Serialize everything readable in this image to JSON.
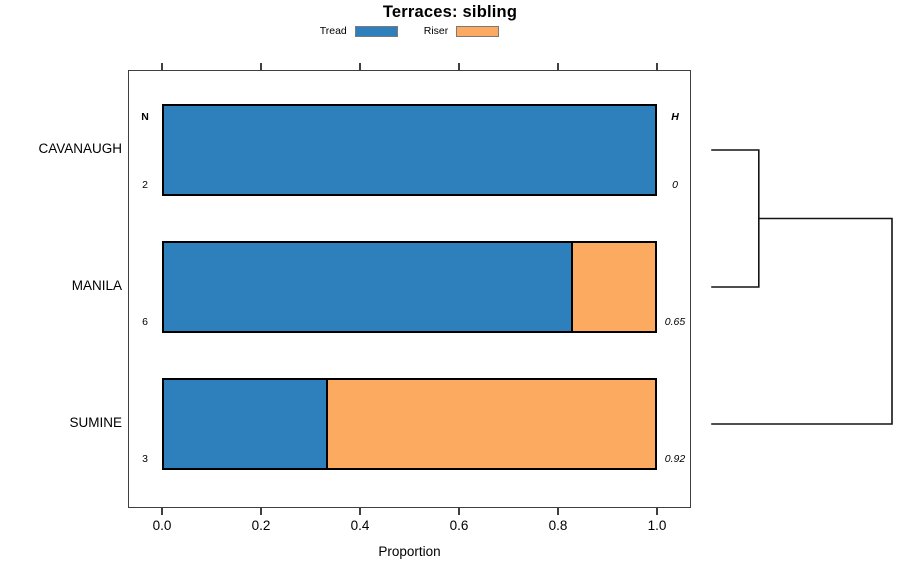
{
  "chart_data": {
    "type": "bar",
    "orientation": "horizontal-stacked",
    "title": "Terraces: sibling",
    "xlabel": "Proportion",
    "xlim": [
      0,
      1
    ],
    "x_ticks": [
      "0.0",
      "0.2",
      "0.4",
      "0.6",
      "0.8",
      "1.0"
    ],
    "grid": false,
    "legend_position": "top-center",
    "categories": [
      "CAVANAUGH",
      "MANILA",
      "SUMINE"
    ],
    "series": [
      {
        "name": "Tread",
        "color": "#2E80BC",
        "values": [
          1.0,
          0.833,
          0.333
        ]
      },
      {
        "name": "Riser",
        "color": "#FCAA60",
        "values": [
          0.0,
          0.167,
          0.667
        ]
      }
    ],
    "n_column": {
      "header": "N",
      "values": [
        "2",
        "6",
        "3"
      ]
    },
    "h_column": {
      "header": "H",
      "values": [
        "0",
        "0.65",
        "0.92"
      ]
    },
    "dendrogram": {
      "leaves": [
        "CAVANAUGH",
        "MANILA",
        "SUMINE"
      ],
      "merges": [
        {
          "members": [
            "CAVANAUGH",
            "MANILA"
          ],
          "x_frac": 0.26
        },
        {
          "members": [
            "CAVANAUGH+MANILA",
            "SUMINE"
          ],
          "x_frac": 1.0
        }
      ]
    },
    "colors": {
      "bar_border": "#000000",
      "axis": "#3f3f3f",
      "dendrogram_line": "#141414",
      "background": "#ffffff"
    }
  }
}
